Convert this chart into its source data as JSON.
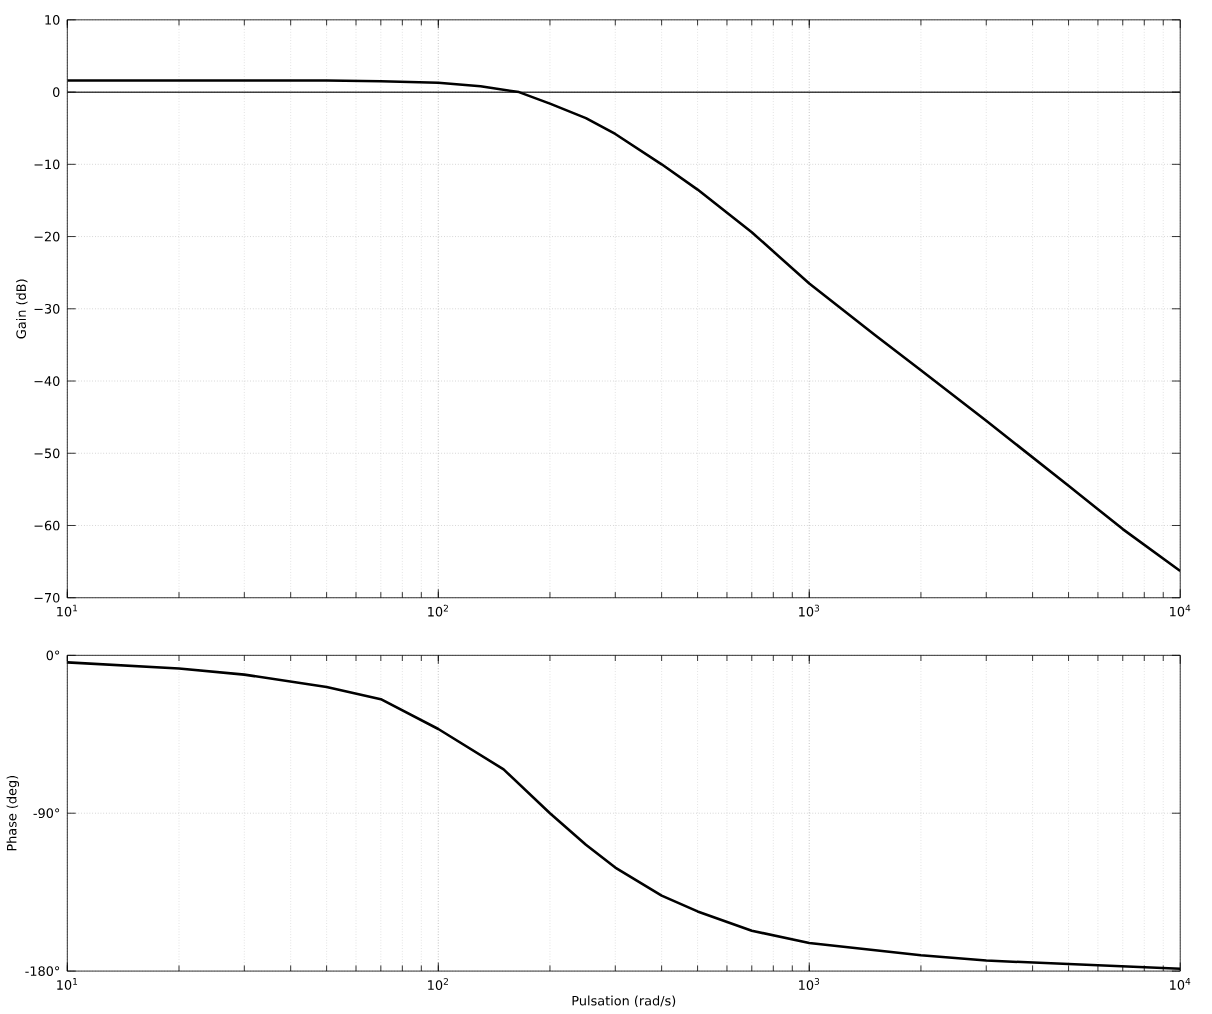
{
  "chart_data": [
    {
      "type": "line",
      "ylabel": "Gain (dB)",
      "log": "x",
      "grid": true,
      "x": [
        10,
        20,
        30,
        50,
        70,
        100,
        130,
        165,
        200,
        250,
        300,
        400,
        500,
        700,
        1000,
        1500,
        2000,
        3000,
        5000,
        7000,
        10000
      ],
      "series": [
        {
          "color": "#000000",
          "values": [
            1.6,
            1.6,
            1.6,
            1.6,
            1.5,
            1.3,
            0.8,
            0.0,
            -1.6,
            -3.6,
            -5.8,
            -10,
            -13.5,
            -19.4,
            -26.5,
            -33.6,
            -38.5,
            -45.5,
            -54.5,
            -60.5,
            -66.3
          ]
        }
      ],
      "ref_lines": [
        {
          "axis": "y",
          "value": 0,
          "color": "#000000"
        }
      ],
      "xlim": [
        10,
        10000
      ],
      "ylim": [
        -70,
        10
      ],
      "xticks": [
        {
          "value": 10,
          "label": "10$^{1}$"
        },
        {
          "value": 100,
          "label": "10$^{2}$"
        },
        {
          "value": 1000,
          "label": "10$^{3}$"
        },
        {
          "value": 10000,
          "label": "10$^{4}$"
        }
      ],
      "yticks": [
        10,
        0,
        {
          "value": -10,
          "label": "−10"
        },
        {
          "value": -20,
          "label": "−20"
        },
        {
          "value": -30,
          "label": "−30"
        },
        {
          "value": -40,
          "label": "−40"
        },
        {
          "value": -50,
          "label": "−50"
        },
        {
          "value": -60,
          "label": "−60"
        },
        {
          "value": -70,
          "label": "−70"
        }
      ]
    },
    {
      "type": "line",
      "xlabel": "Pulsation (rad/s)",
      "ylabel": "Phase (deg)",
      "log": "x",
      "grid": true,
      "x": [
        10,
        20,
        30,
        50,
        70,
        100,
        150,
        200,
        250,
        300,
        400,
        500,
        700,
        1000,
        2000,
        3000,
        5000,
        10000
      ],
      "series": [
        {
          "color": "#000000",
          "values": [
            -4,
            -7.5,
            -11,
            -18,
            -25,
            -42,
            -65,
            -90,
            -108,
            -121,
            -137,
            -146,
            -157,
            -164,
            -171,
            -174,
            -176,
            -178.7
          ]
        }
      ],
      "xlim": [
        10,
        10000
      ],
      "ylim": [
        -180,
        0
      ],
      "xticks": [
        {
          "value": 10,
          "label": "10$^{1}$"
        },
        {
          "value": 100,
          "label": "10$^{2}$"
        },
        {
          "value": 1000,
          "label": "10$^{3}$"
        },
        {
          "value": 10000,
          "label": "10$^{4}$"
        }
      ],
      "yticks": [
        {
          "value": 0,
          "label": "0°"
        },
        {
          "value": -90,
          "label": "-90°"
        },
        {
          "value": -180,
          "label": "-180°"
        }
      ]
    }
  ]
}
